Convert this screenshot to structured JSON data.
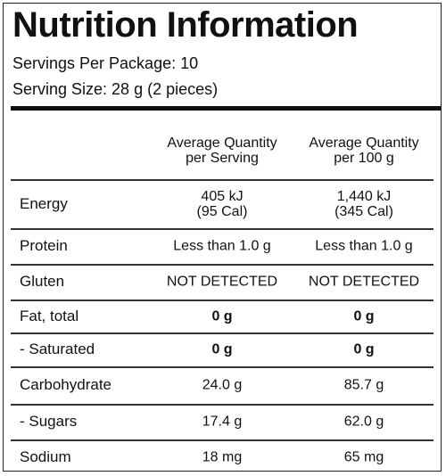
{
  "header": {
    "title": "Nutrition Information",
    "servings_per_package": "Servings Per Package: 10",
    "serving_size": "Serving Size: 28 g (2 pieces)"
  },
  "table": {
    "columns": [
      [
        "Average Quantity",
        "per Serving"
      ],
      [
        "Average Quantity",
        "per 100 g"
      ]
    ],
    "rows": [
      {
        "label": "Energy",
        "values": [
          [
            "405 kJ",
            "(95 Cal)"
          ],
          [
            "1,440 kJ",
            "(345 Cal)"
          ]
        ]
      },
      {
        "label": "Protein",
        "values": [
          [
            "Less than 1.0 g"
          ],
          [
            "Less than 1.0 g"
          ]
        ]
      },
      {
        "label": "Gluten",
        "values": [
          [
            "NOT DETECTED"
          ],
          [
            "NOT DETECTED"
          ]
        ]
      },
      {
        "label": "Fat, total",
        "values": [
          [
            "0 g"
          ],
          [
            "0 g"
          ]
        ],
        "bold": true
      },
      {
        "label": "- Saturated",
        "values": [
          [
            "0 g"
          ],
          [
            "0 g"
          ]
        ],
        "bold": true
      },
      {
        "label": "Carbohydrate",
        "values": [
          [
            "24.0 g"
          ],
          [
            "85.7 g"
          ]
        ]
      },
      {
        "label": "- Sugars",
        "values": [
          [
            "17.4 g"
          ],
          [
            "62.0 g"
          ]
        ]
      },
      {
        "label": "Sodium",
        "values": [
          [
            "18 mg"
          ],
          [
            "65 mg"
          ]
        ]
      }
    ]
  }
}
